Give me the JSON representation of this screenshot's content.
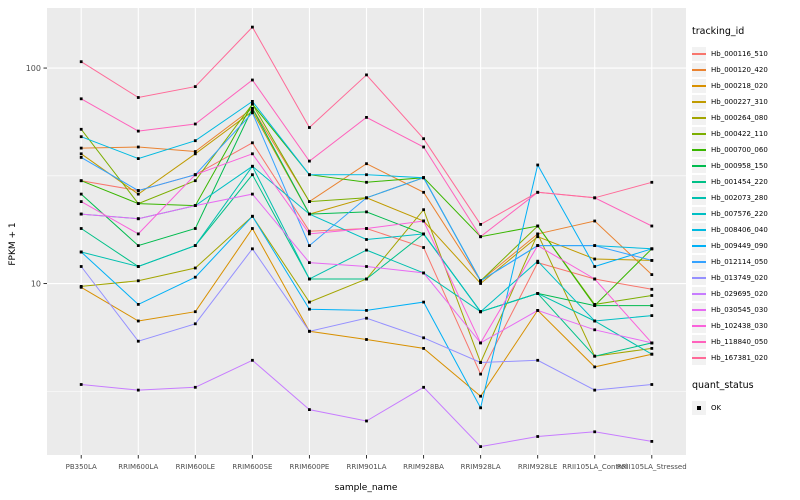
{
  "figure": {
    "background": "#FFFFFF"
  },
  "chart_data": {
    "type": "line",
    "title": "",
    "xlabel": "sample_name",
    "ylabel": "FPKM + 1",
    "yscale": "log10",
    "ylim": [
      1.6,
      190
    ],
    "yticks": [
      10,
      100
    ],
    "ytick_labels": [
      "10",
      "100"
    ],
    "yticks_minor": [
      3.162,
      31.62
    ],
    "grid": true,
    "legend_position": "right",
    "panel_bg": "#EBEBEB",
    "grid_color": "#FFFFFF",
    "tick_color": "#333333",
    "tick_label_color": "#4D4D4D",
    "point_color": "#000000",
    "point_shape": "square",
    "categories": [
      "PB350LA",
      "RRIM600LA",
      "RRIM600LE",
      "RRIM600SE",
      "RRIM600PE",
      "RRIM901LA",
      "RRIM928BA",
      "RRIM928LA",
      "RRIM928LE",
      "RRII105LA_Control",
      "RRII105LA_Stressed"
    ],
    "series": [
      {
        "name": "Hb_000116_510",
        "color": "#F8766D",
        "values": [
          30,
          27,
          32,
          45,
          17.5,
          18,
          14.7,
          3.8,
          12.5,
          10.5,
          9.4
        ]
      },
      {
        "name": "Hb_000120_420",
        "color": "#EA8331",
        "values": [
          42.5,
          43,
          41,
          65,
          24,
          36,
          26.5,
          10.3,
          17,
          19.5,
          11
        ]
      },
      {
        "name": "Hb_000218_020",
        "color": "#D89000",
        "values": [
          9.6,
          6.7,
          7.4,
          18,
          6,
          5.5,
          5,
          3,
          7.5,
          4.1,
          4.7
        ]
      },
      {
        "name": "Hb_000227_310",
        "color": "#C09B00",
        "values": [
          40,
          26,
          40,
          63,
          21,
          25,
          19.5,
          10,
          16.5,
          13,
          12.8
        ]
      },
      {
        "name": "Hb_000264_080",
        "color": "#A3A500",
        "values": [
          9.7,
          10.3,
          11.8,
          20.5,
          8.2,
          10.5,
          22,
          4.3,
          17,
          4.6,
          5
        ]
      },
      {
        "name": "Hb_000422_110",
        "color": "#7CAE00",
        "values": [
          52,
          23.5,
          30,
          68,
          24,
          25,
          31,
          10.3,
          18.5,
          8,
          8.8
        ]
      },
      {
        "name": "Hb_000700_060",
        "color": "#39B600",
        "values": [
          30,
          23.5,
          23,
          68,
          32,
          29.5,
          31,
          16.5,
          18.5,
          7.9,
          14.5
        ]
      },
      {
        "name": "Hb_000958_150",
        "color": "#00BB4E",
        "values": [
          26,
          15,
          18,
          65,
          21,
          21.5,
          17,
          7.4,
          9,
          7.9,
          7.9
        ]
      },
      {
        "name": "Hb_001454_220",
        "color": "#00C087",
        "values": [
          18,
          12,
          15,
          32,
          10.5,
          10.5,
          17,
          7.4,
          9,
          4.6,
          5.3
        ]
      },
      {
        "name": "Hb_002073_280",
        "color": "#00C0AF",
        "values": [
          14,
          12,
          15,
          35,
          10.5,
          14.3,
          11.2,
          7.4,
          9,
          6.7,
          4.7
        ]
      },
      {
        "name": "Hb_007576_220",
        "color": "#00BFC4",
        "values": [
          21,
          20,
          23,
          35,
          21,
          16,
          17,
          7.4,
          12.7,
          6.7,
          7.1
        ]
      },
      {
        "name": "Hb_008406_040",
        "color": "#00BAE0",
        "values": [
          48,
          38,
          46,
          70,
          32,
          32,
          31,
          10.3,
          15,
          15,
          14.5
        ]
      },
      {
        "name": "Hb_009449_090",
        "color": "#00B0F6",
        "values": [
          14,
          8,
          10.7,
          20.5,
          7.6,
          7.5,
          8.2,
          2.65,
          35.5,
          12,
          14.5
        ]
      },
      {
        "name": "Hb_012114_050",
        "color": "#35A2FF",
        "values": [
          38.5,
          27,
          32,
          62,
          15,
          25,
          31,
          10.3,
          15,
          15,
          12.8
        ]
      },
      {
        "name": "Hb_013749_020",
        "color": "#9590FF",
        "values": [
          12,
          5.4,
          6.5,
          14.5,
          6,
          6.9,
          5.6,
          4.3,
          4.4,
          3.2,
          3.4
        ]
      },
      {
        "name": "Hb_029695_020",
        "color": "#C77CFF",
        "values": [
          3.4,
          3.2,
          3.3,
          4.4,
          2.6,
          2.3,
          3.3,
          1.75,
          1.95,
          2.05,
          1.85
        ]
      },
      {
        "name": "Hb_030545_030",
        "color": "#E76BF3",
        "values": [
          21,
          20,
          23,
          26,
          12.5,
          12,
          11.2,
          5.3,
          7.5,
          6.1,
          5.3
        ]
      },
      {
        "name": "Hb_102438_030",
        "color": "#FA62DB",
        "values": [
          24,
          17,
          32,
          40,
          17,
          18,
          19.5,
          5.3,
          15,
          10.5,
          5.3
        ]
      },
      {
        "name": "Hb_118840_050",
        "color": "#FF62BC",
        "values": [
          72,
          51,
          55,
          88,
          37,
          59,
          43,
          16.5,
          26.5,
          25,
          18.5
        ]
      },
      {
        "name": "Hb_167381_020",
        "color": "#FF6A98",
        "values": [
          107,
          73,
          82,
          155,
          53,
          93,
          47,
          18.8,
          26.5,
          25,
          29.5
        ]
      }
    ],
    "legend": {
      "tracking_title": "tracking_id",
      "quant_title": "quant_status",
      "quant_items": [
        {
          "label": "OK",
          "marker": "black-square"
        }
      ],
      "key_bg": "#F2F2F2"
    }
  }
}
